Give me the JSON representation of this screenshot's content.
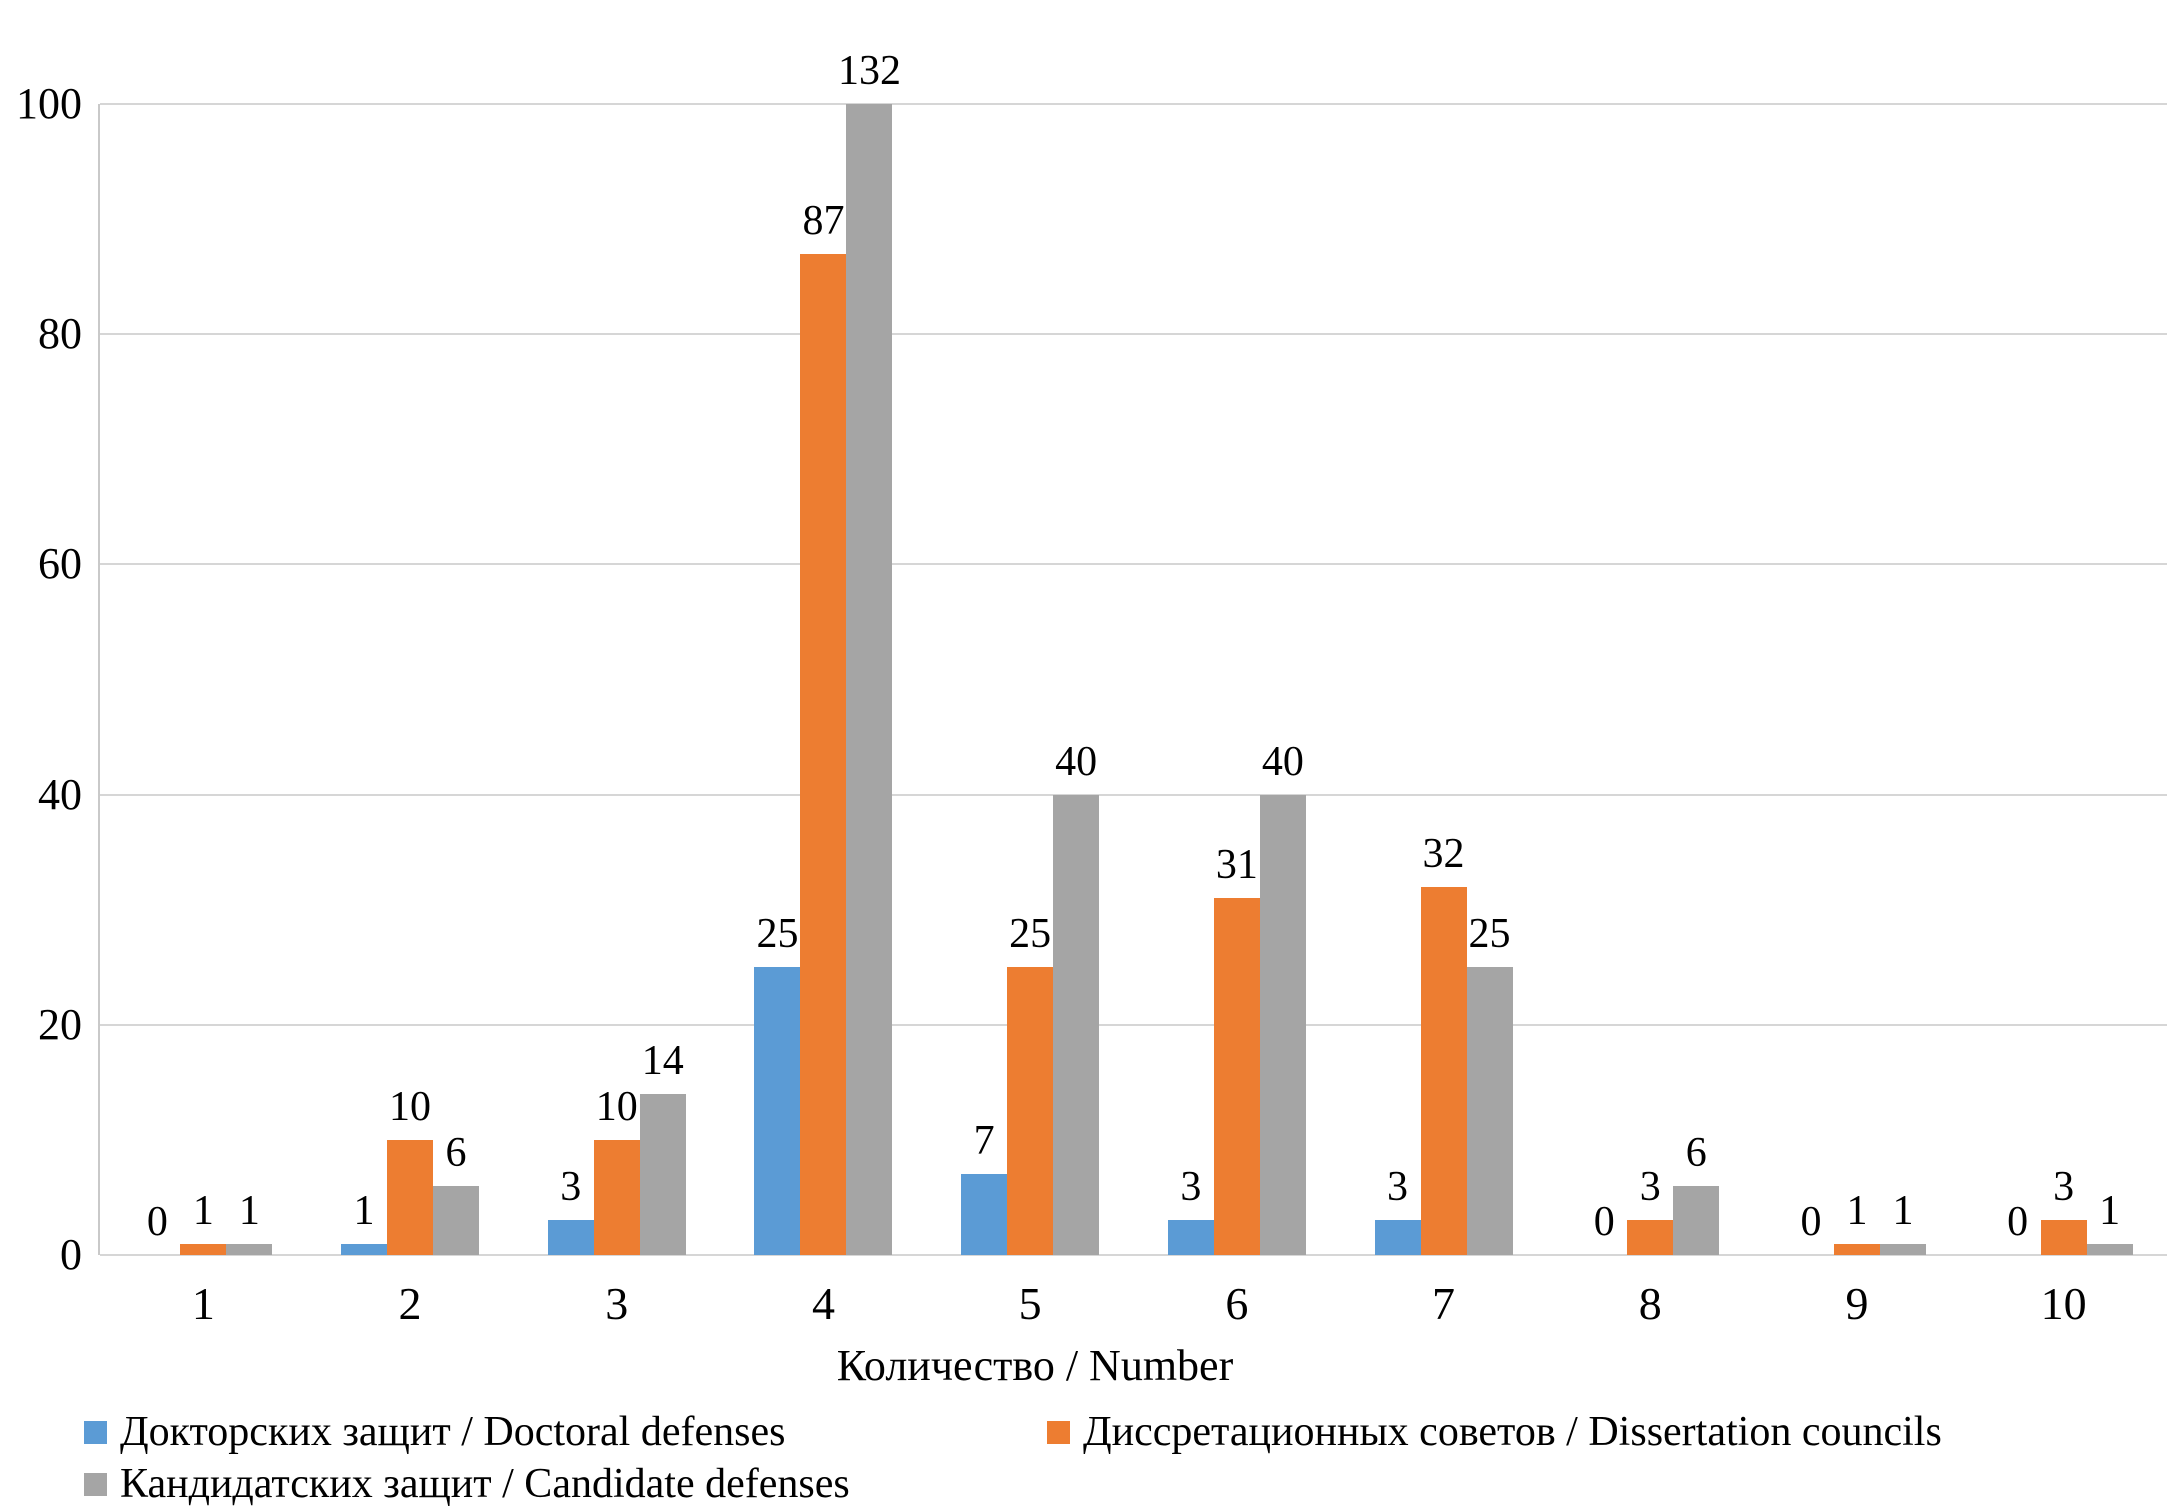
{
  "chart_data": {
    "type": "bar",
    "title": "",
    "xlabel": "Количество / Number",
    "ylabel": "",
    "categories": [
      "1",
      "2",
      "3",
      "4",
      "5",
      "6",
      "7",
      "8",
      "9",
      "10"
    ],
    "series": [
      {
        "name": "Докторских защит / Doctoral defenses",
        "color": "#5B9BD5",
        "values": [
          0,
          1,
          3,
          25,
          7,
          3,
          3,
          0,
          0,
          0
        ]
      },
      {
        "name": "Диссретационных советов / Dissertation councils",
        "color": "#ED7D31",
        "values": [
          1,
          10,
          10,
          87,
          25,
          31,
          32,
          3,
          1,
          3
        ]
      },
      {
        "name": "Кандидатских защит / Candidate defenses",
        "color": "#A5A5A5",
        "values": [
          1,
          6,
          14,
          132,
          40,
          40,
          25,
          6,
          1,
          1
        ]
      }
    ],
    "ylim": [
      0,
      100
    ],
    "yticks": [
      0,
      20,
      40,
      60,
      80,
      100
    ],
    "grid": true,
    "data_labels": true,
    "legend_position": "bottom"
  },
  "colors": {
    "gridline": "#d6d6d6",
    "axis_line": "#c9c9c9",
    "text": "#000000",
    "background": "#ffffff"
  }
}
